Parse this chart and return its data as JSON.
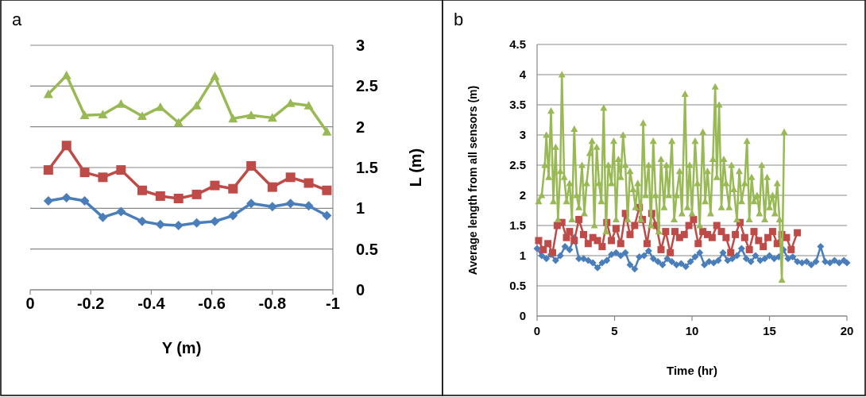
{
  "chart_data": [
    {
      "type": "line",
      "title": "a",
      "xlabel": "Y (m)",
      "ylabel": "L (m)",
      "x": [
        -0.06,
        -0.12,
        -0.18,
        -0.24,
        -0.3,
        -0.37,
        -0.43,
        -0.49,
        -0.55,
        -0.61,
        -0.67,
        -0.73,
        -0.8,
        -0.86,
        -0.92,
        -0.98
      ],
      "series": [
        {
          "color": "#4a7ebb",
          "marker": "diamond",
          "values": [
            1.09,
            1.13,
            1.09,
            0.89,
            0.96,
            0.84,
            0.8,
            0.79,
            0.82,
            0.84,
            0.91,
            1.06,
            1.02,
            1.06,
            1.03,
            0.91
          ]
        },
        {
          "color": "#be4b48",
          "marker": "square",
          "values": [
            1.47,
            1.77,
            1.44,
            1.38,
            1.47,
            1.22,
            1.15,
            1.12,
            1.17,
            1.28,
            1.24,
            1.52,
            1.26,
            1.38,
            1.31,
            1.22
          ]
        },
        {
          "color": "#98b954",
          "marker": "triangle",
          "values": [
            2.4,
            2.63,
            2.14,
            2.15,
            2.28,
            2.13,
            2.24,
            2.05,
            2.26,
            2.62,
            2.1,
            2.14,
            2.11,
            2.29,
            2.26,
            1.94
          ]
        }
      ],
      "xlim": [
        0,
        -1
      ],
      "xticks": [
        0,
        -0.2,
        -0.4,
        -0.6,
        -0.8,
        -1
      ],
      "ylim": [
        0,
        3
      ],
      "yticks": [
        0,
        0.5,
        1,
        1.5,
        2,
        2.5,
        3
      ],
      "grid": "y"
    },
    {
      "type": "line",
      "title": "b",
      "xlabel": "Time (hr)",
      "ylabel": "Average length from all sensors (m)",
      "series": [
        {
          "color": "#4a7ebb",
          "marker": "diamond",
          "x": [
            0,
            0.3,
            0.6,
            0.9,
            1.2,
            1.5,
            1.8,
            2.1,
            2.4,
            2.7,
            3.0,
            3.3,
            3.6,
            3.9,
            4.2,
            4.5,
            4.8,
            5.1,
            5.4,
            5.7,
            6.0,
            6.3,
            6.6,
            6.9,
            7.2,
            7.5,
            7.8,
            8.1,
            8.4,
            8.7,
            9.0,
            9.3,
            9.6,
            9.9,
            10.2,
            10.5,
            10.8,
            11.1,
            11.4,
            11.7,
            12.0,
            12.3,
            12.6,
            12.9,
            13.2,
            13.5,
            13.8,
            14.1,
            14.4,
            14.7,
            15.0,
            15.3,
            15.6,
            15.9,
            16.2,
            16.5,
            16.8,
            17.1,
            17.4,
            17.7,
            18.0,
            18.3,
            18.6,
            18.9,
            19.2,
            19.5,
            19.8,
            20.0
          ],
          "values": [
            1.12,
            1.0,
            0.95,
            1.02,
            0.92,
            1.0,
            1.15,
            1.1,
            1.3,
            0.95,
            0.95,
            0.92,
            0.88,
            0.8,
            0.88,
            0.92,
            1.02,
            1.05,
            1.0,
            1.05,
            0.85,
            0.78,
            0.98,
            1.0,
            1.08,
            0.95,
            0.9,
            0.85,
            0.95,
            0.9,
            0.85,
            0.87,
            0.82,
            0.9,
            0.98,
            1.05,
            0.85,
            0.9,
            0.88,
            0.92,
            1.05,
            0.92,
            0.95,
            1.0,
            1.12,
            0.95,
            0.9,
            1.0,
            0.92,
            0.95,
            1.0,
            0.95,
            0.98,
            1.1,
            0.95,
            0.98,
            0.9,
            0.88,
            0.9,
            0.85,
            0.9,
            1.15,
            0.9,
            0.88,
            0.92,
            0.88,
            0.92,
            0.88
          ]
        },
        {
          "color": "#be4b48",
          "marker": "square",
          "x": [
            0.1,
            0.4,
            0.7,
            1.0,
            1.3,
            1.6,
            1.9,
            2.1,
            2.4,
            2.7,
            3.0,
            3.3,
            3.6,
            3.9,
            4.2,
            4.5,
            4.8,
            5.1,
            5.4,
            5.7,
            6.0,
            6.3,
            6.6,
            6.8,
            7.1,
            7.4,
            7.7,
            8.0,
            8.3,
            8.6,
            8.9,
            9.2,
            9.5,
            9.8,
            10.1,
            10.4,
            10.7,
            11.0,
            11.3,
            11.6,
            11.9,
            12.2,
            12.5,
            12.8,
            13.1,
            13.4,
            13.7,
            14.0,
            14.3,
            14.6,
            14.9,
            15.2,
            15.5,
            15.8,
            16.1,
            16.4,
            16.8
          ],
          "values": [
            1.25,
            1.1,
            1.2,
            1.05,
            1.5,
            1.55,
            1.3,
            1.4,
            1.25,
            1.6,
            1.35,
            1.2,
            1.3,
            1.25,
            1.15,
            1.55,
            1.25,
            1.45,
            1.2,
            1.7,
            1.35,
            1.5,
            1.8,
            1.6,
            1.2,
            1.7,
            1.5,
            1.1,
            1.4,
            1.05,
            1.4,
            1.3,
            1.35,
            1.5,
            1.6,
            1.2,
            1.4,
            1.35,
            1.3,
            1.5,
            1.4,
            1.3,
            1.05,
            1.35,
            1.55,
            1.3,
            1.1,
            1.4,
            1.25,
            1.15,
            1.3,
            1.4,
            1.2,
            1.35,
            1.3,
            1.1,
            1.38
          ]
        },
        {
          "color": "#98b954",
          "marker": "triangle",
          "x": [
            0.1,
            0.3,
            0.5,
            0.6,
            0.75,
            0.9,
            1.05,
            1.2,
            1.35,
            1.5,
            1.6,
            1.75,
            1.9,
            2.1,
            2.25,
            2.4,
            2.55,
            2.7,
            2.9,
            3.05,
            3.2,
            3.4,
            3.55,
            3.7,
            3.85,
            4.0,
            4.15,
            4.3,
            4.45,
            4.6,
            4.8,
            4.95,
            5.1,
            5.25,
            5.4,
            5.55,
            5.7,
            5.85,
            6.0,
            6.2,
            6.35,
            6.5,
            6.7,
            6.85,
            7.0,
            7.2,
            7.35,
            7.5,
            7.65,
            7.85,
            8.0,
            8.2,
            8.35,
            8.5,
            8.7,
            8.85,
            9.0,
            9.2,
            9.35,
            9.55,
            9.7,
            9.85,
            10.0,
            10.2,
            10.35,
            10.5,
            10.7,
            10.85,
            11.0,
            11.2,
            11.35,
            11.5,
            11.6,
            11.75,
            11.9,
            12.05,
            12.2,
            12.4,
            12.55,
            12.7,
            12.9,
            13.05,
            13.2,
            13.4,
            13.55,
            13.7,
            13.85,
            14.0,
            14.2,
            14.35,
            14.5,
            14.7,
            14.85,
            15.0,
            15.2,
            15.35,
            15.5,
            15.65,
            15.8,
            15.95
          ],
          "values": [
            1.9,
            2.0,
            2.5,
            3.0,
            2.3,
            3.4,
            1.9,
            2.8,
            1.6,
            2.4,
            4.0,
            2.3,
            1.9,
            2.2,
            1.6,
            3.1,
            2.0,
            1.8,
            2.5,
            1.7,
            2.2,
            2.7,
            2.9,
            1.5,
            2.8,
            2.2,
            1.9,
            3.45,
            1.4,
            2.5,
            2.2,
            2.9,
            1.6,
            2.6,
            2.3,
            3.0,
            2.5,
            1.6,
            2.4,
            2.1,
            1.8,
            2.2,
            1.6,
            3.2,
            2.0,
            2.5,
            1.5,
            2.9,
            2.0,
            1.4,
            2.6,
            1.8,
            2.5,
            2.0,
            2.9,
            1.6,
            2.0,
            2.4,
            1.7,
            3.68,
            1.8,
            2.5,
            1.7,
            2.9,
            2.2,
            1.5,
            3.05,
            1.9,
            2.4,
            1.7,
            2.6,
            3.8,
            2.3,
            3.5,
            1.8,
            2.6,
            2.2,
            1.8,
            2.5,
            2.1,
            1.6,
            2.4,
            1.9,
            2.2,
            2.9,
            1.6,
            2.3,
            1.9,
            2.0,
            1.7,
            2.5,
            1.6,
            2.3,
            1.8,
            2.0,
            1.7,
            2.2,
            1.6,
            0.6,
            3.05
          ]
        }
      ],
      "xlim": [
        0,
        20
      ],
      "xticks": [
        0,
        5,
        10,
        15,
        20
      ],
      "ylim": [
        0,
        4.5
      ],
      "yticks": [
        0,
        0.5,
        1,
        1.5,
        2,
        2.5,
        3,
        3.5,
        4,
        4.5
      ],
      "grid": "y"
    }
  ]
}
